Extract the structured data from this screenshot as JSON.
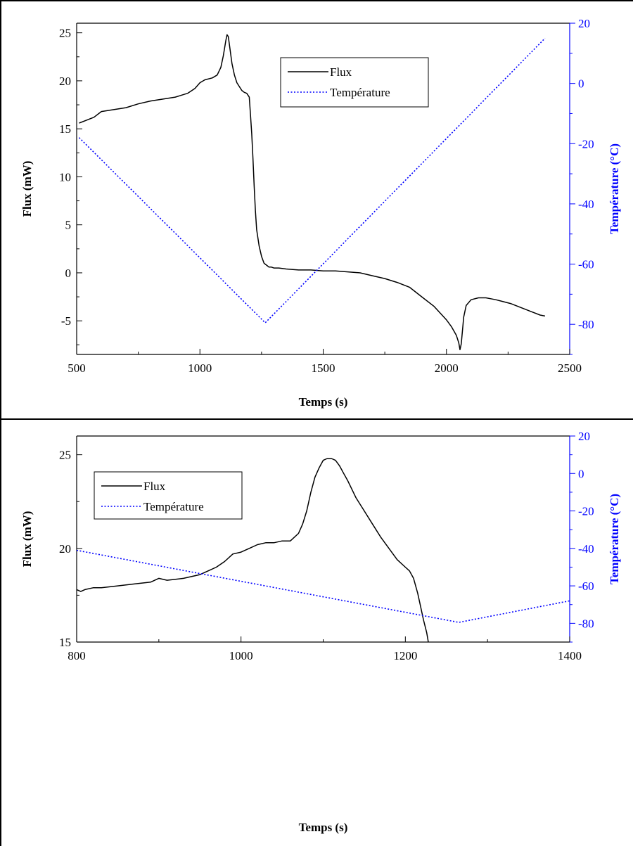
{
  "chart_data": [
    {
      "type": "line",
      "xlabel": "Temps (s)",
      "ylabel": "Flux (mW)",
      "y2label": "Température (°C)",
      "xlim": [
        500,
        2500
      ],
      "ylim": [
        -8.5,
        26
      ],
      "y2lim": [
        -90,
        20
      ],
      "xticks": [
        500,
        1000,
        1500,
        2000,
        2500
      ],
      "yticks": [
        -5,
        0,
        5,
        10,
        15,
        20,
        25
      ],
      "y2ticks": [
        -80,
        -60,
        -40,
        -20,
        0,
        20
      ],
      "legend_position": "top-center",
      "colors": {
        "flux": "#000000",
        "temperature": "#0000ff",
        "right_axis": "#0000ff"
      },
      "series": [
        {
          "name": "Flux",
          "axis": "left",
          "style": "solid",
          "x": [
            510,
            540,
            570,
            600,
            650,
            700,
            750,
            800,
            850,
            900,
            950,
            980,
            1000,
            1020,
            1050,
            1070,
            1085,
            1095,
            1105,
            1110,
            1115,
            1120,
            1130,
            1140,
            1150,
            1160,
            1170,
            1180,
            1190,
            1200,
            1205,
            1210,
            1215,
            1220,
            1225,
            1230,
            1240,
            1250,
            1260,
            1270,
            1280,
            1290,
            1300,
            1320,
            1350,
            1400,
            1450,
            1500,
            1550,
            1600,
            1650,
            1700,
            1750,
            1800,
            1850,
            1900,
            1950,
            2000,
            2020,
            2040,
            2050,
            2055,
            2060,
            2070,
            2080,
            2100,
            2130,
            2160,
            2180,
            2200,
            2230,
            2260,
            2290,
            2320,
            2350,
            2380,
            2400
          ],
          "y": [
            15.6,
            15.9,
            16.2,
            16.8,
            17.0,
            17.2,
            17.6,
            17.9,
            18.1,
            18.3,
            18.7,
            19.2,
            19.8,
            20.1,
            20.3,
            20.6,
            21.4,
            22.6,
            24.2,
            24.8,
            24.6,
            23.7,
            21.8,
            20.6,
            19.8,
            19.4,
            19.0,
            18.8,
            18.7,
            18.3,
            16.5,
            14.5,
            12.0,
            9.0,
            6.5,
            4.5,
            2.8,
            1.7,
            1.0,
            0.8,
            0.6,
            0.6,
            0.5,
            0.5,
            0.4,
            0.3,
            0.3,
            0.2,
            0.2,
            0.1,
            0.0,
            -0.3,
            -0.6,
            -1.0,
            -1.5,
            -2.5,
            -3.5,
            -4.9,
            -5.6,
            -6.5,
            -7.3,
            -8.0,
            -7.4,
            -4.6,
            -3.4,
            -2.8,
            -2.6,
            -2.6,
            -2.7,
            -2.8,
            -3.0,
            -3.2,
            -3.5,
            -3.8,
            -4.1,
            -4.4,
            -4.5
          ]
        },
        {
          "name": "Température",
          "axis": "right",
          "style": "dotted",
          "x": [
            510,
            1265,
            2400
          ],
          "y": [
            -18.0,
            -79.5,
            15.0
          ]
        }
      ]
    },
    {
      "type": "line",
      "xlabel": "Temps (s)",
      "ylabel": "Flux (mW)",
      "y2label": "Température (°C)",
      "xlim": [
        800,
        1400
      ],
      "ylim": [
        15,
        26
      ],
      "y2lim": [
        -90,
        20
      ],
      "xticks": [
        800,
        1000,
        1200,
        1400
      ],
      "yticks": [
        15,
        20,
        25
      ],
      "y2ticks": [
        -80,
        -60,
        -40,
        -20,
        0,
        20
      ],
      "legend_position": "top-left",
      "colors": {
        "flux": "#000000",
        "temperature": "#0000ff",
        "right_axis": "#0000ff"
      },
      "series": [
        {
          "name": "Flux",
          "axis": "left",
          "style": "solid",
          "x": [
            800,
            805,
            810,
            820,
            830,
            850,
            870,
            890,
            900,
            910,
            930,
            950,
            960,
            970,
            980,
            990,
            1000,
            1010,
            1020,
            1030,
            1040,
            1050,
            1060,
            1070,
            1075,
            1080,
            1085,
            1090,
            1095,
            1100,
            1105,
            1110,
            1115,
            1120,
            1125,
            1130,
            1140,
            1150,
            1160,
            1170,
            1180,
            1190,
            1200,
            1205,
            1210,
            1215,
            1218,
            1222,
            1226,
            1228
          ],
          "y": [
            17.8,
            17.7,
            17.8,
            17.9,
            17.9,
            18.0,
            18.1,
            18.2,
            18.4,
            18.3,
            18.4,
            18.6,
            18.8,
            19.0,
            19.3,
            19.7,
            19.8,
            20.0,
            20.2,
            20.3,
            20.3,
            20.4,
            20.4,
            20.8,
            21.3,
            22.0,
            23.0,
            23.8,
            24.3,
            24.7,
            24.8,
            24.8,
            24.7,
            24.4,
            24.0,
            23.6,
            22.7,
            22.0,
            21.3,
            20.6,
            20.0,
            19.4,
            19.0,
            18.8,
            18.4,
            17.6,
            17.0,
            16.2,
            15.5,
            15.0
          ]
        },
        {
          "name": "Température",
          "axis": "right",
          "style": "dotted",
          "x": [
            800,
            1265,
            1400
          ],
          "y": [
            -41.0,
            -79.5,
            -68.0
          ]
        }
      ]
    }
  ]
}
